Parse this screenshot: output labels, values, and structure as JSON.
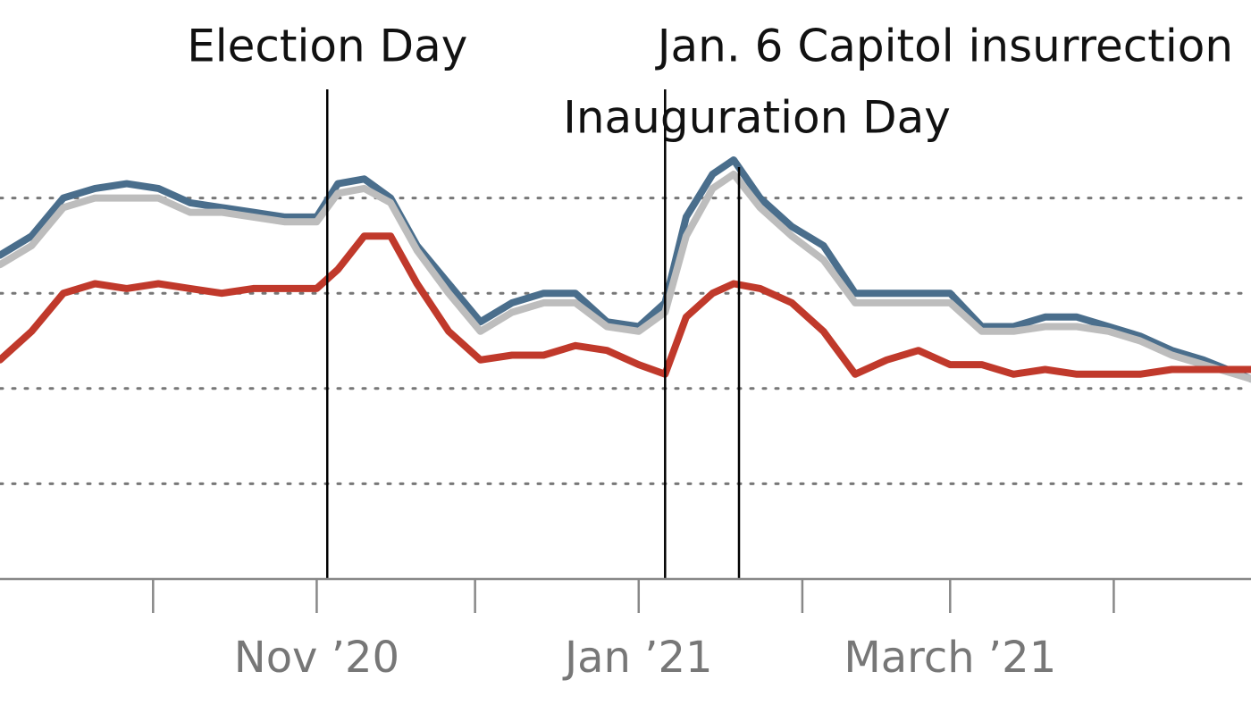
{
  "chart_data": {
    "type": "line",
    "title": "",
    "xlabel": "",
    "ylabel": "",
    "ylim": [
      0,
      100
    ],
    "grid": "horizontal-dotted",
    "legend": "none",
    "x_range": [
      "2020-09-02",
      "2021-04-27"
    ],
    "y_gridlines": [
      20,
      40,
      60,
      80
    ],
    "x_ticks": [
      {
        "date": "2020-10-01",
        "label": ""
      },
      {
        "date": "2020-11-01",
        "label": "Nov ’20"
      },
      {
        "date": "2020-12-01",
        "label": ""
      },
      {
        "date": "2021-01-01",
        "label": "Jan ’21"
      },
      {
        "date": "2021-02-01",
        "label": ""
      },
      {
        "date": "2021-03-01",
        "label": "March ’21"
      },
      {
        "date": "2021-04-01",
        "label": ""
      }
    ],
    "events": [
      {
        "date": "2020-11-03",
        "label": "Election Day",
        "line_top": 100,
        "label_row": 1
      },
      {
        "date": "2021-01-06",
        "label": "Jan. 6 Capitol insurrection",
        "line_top": 100,
        "label_row": 1
      },
      {
        "date": "2021-01-20",
        "label": "Inauguration Day",
        "line_top": 100,
        "label_row": 2
      }
    ],
    "series": [
      {
        "color": "#4a6e8c",
        "x": [
          "2020-09-02",
          "2020-09-08",
          "2020-09-14",
          "2020-09-20",
          "2020-09-26",
          "2020-10-02",
          "2020-10-08",
          "2020-10-14",
          "2020-10-20",
          "2020-10-26",
          "2020-11-01",
          "2020-11-05",
          "2020-11-10",
          "2020-11-15",
          "2020-11-20",
          "2020-11-26",
          "2020-12-02",
          "2020-12-08",
          "2020-12-14",
          "2020-12-20",
          "2020-12-26",
          "2021-01-01",
          "2021-01-06",
          "2021-01-10",
          "2021-01-15",
          "2021-01-19",
          "2021-01-24",
          "2021-01-30",
          "2021-02-05",
          "2021-02-11",
          "2021-02-17",
          "2021-02-23",
          "2021-03-01",
          "2021-03-07",
          "2021-03-13",
          "2021-03-19",
          "2021-03-25",
          "2021-03-31",
          "2021-04-06",
          "2021-04-12",
          "2021-04-18",
          "2021-04-27"
        ],
        "values": [
          68,
          72,
          80,
          82,
          83,
          82,
          79,
          78,
          77,
          76,
          76,
          83,
          84,
          80,
          70,
          62,
          54,
          58,
          60,
          60,
          54,
          53,
          58,
          76,
          85,
          88,
          80,
          74,
          70,
          60,
          60,
          60,
          60,
          53,
          53,
          55,
          55,
          53,
          51,
          48,
          46,
          42
        ]
      },
      {
        "color": "#bdbdbd",
        "x": [
          "2020-09-02",
          "2020-09-08",
          "2020-09-14",
          "2020-09-20",
          "2020-09-26",
          "2020-10-02",
          "2020-10-08",
          "2020-10-14",
          "2020-10-20",
          "2020-10-26",
          "2020-11-01",
          "2020-11-05",
          "2020-11-10",
          "2020-11-15",
          "2020-11-20",
          "2020-11-26",
          "2020-12-02",
          "2020-12-08",
          "2020-12-14",
          "2020-12-20",
          "2020-12-26",
          "2021-01-01",
          "2021-01-06",
          "2021-01-10",
          "2021-01-15",
          "2021-01-19",
          "2021-01-24",
          "2021-01-30",
          "2021-02-05",
          "2021-02-11",
          "2021-02-17",
          "2021-02-23",
          "2021-03-01",
          "2021-03-07",
          "2021-03-13",
          "2021-03-19",
          "2021-03-25",
          "2021-03-31",
          "2021-04-06",
          "2021-04-12",
          "2021-04-18",
          "2021-04-27"
        ],
        "values": [
          66,
          70,
          78,
          80,
          80,
          80,
          77,
          77,
          76,
          75,
          75,
          81,
          82,
          79,
          69,
          60,
          52,
          56,
          58,
          58,
          53,
          52,
          56,
          72,
          82,
          85,
          78,
          72,
          67,
          58,
          58,
          58,
          58,
          52,
          52,
          53,
          53,
          52,
          50,
          47,
          45,
          42
        ]
      },
      {
        "color": "#c0392b",
        "x": [
          "2020-09-02",
          "2020-09-08",
          "2020-09-14",
          "2020-09-20",
          "2020-09-26",
          "2020-10-02",
          "2020-10-08",
          "2020-10-14",
          "2020-10-20",
          "2020-10-26",
          "2020-11-01",
          "2020-11-05",
          "2020-11-10",
          "2020-11-15",
          "2020-11-20",
          "2020-11-26",
          "2020-12-02",
          "2020-12-08",
          "2020-12-14",
          "2020-12-20",
          "2020-12-26",
          "2021-01-01",
          "2021-01-06",
          "2021-01-10",
          "2021-01-15",
          "2021-01-19",
          "2021-01-24",
          "2021-01-30",
          "2021-02-05",
          "2021-02-11",
          "2021-02-17",
          "2021-02-23",
          "2021-03-01",
          "2021-03-07",
          "2021-03-13",
          "2021-03-19",
          "2021-03-25",
          "2021-03-31",
          "2021-04-06",
          "2021-04-12",
          "2021-04-18",
          "2021-04-27"
        ],
        "values": [
          46,
          52,
          60,
          62,
          61,
          62,
          61,
          60,
          61,
          61,
          61,
          65,
          72,
          72,
          62,
          52,
          46,
          47,
          47,
          49,
          48,
          45,
          43,
          55,
          60,
          62,
          61,
          58,
          52,
          43,
          46,
          48,
          45,
          45,
          43,
          44,
          43,
          43,
          43,
          44,
          44,
          44
        ]
      }
    ]
  }
}
